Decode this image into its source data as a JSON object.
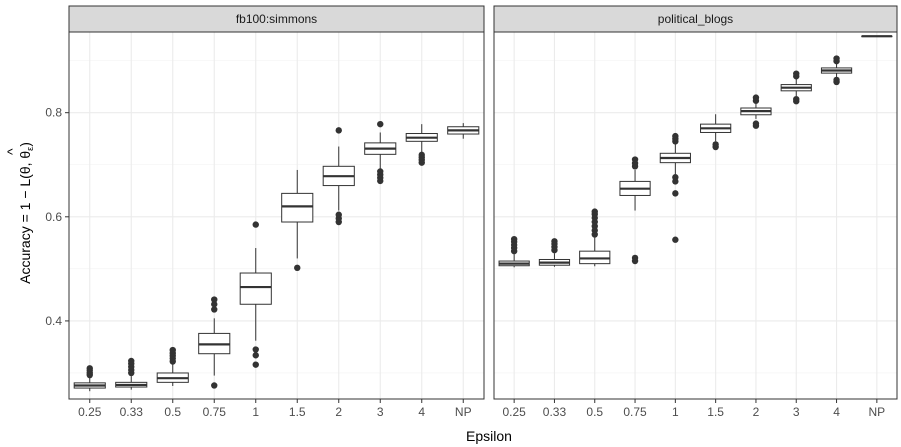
{
  "chart_data": {
    "type": "boxplot",
    "xlabel": "Epsilon",
    "ylabel": "Accuracy = 1 − L(θ, θ̂ε)",
    "categories": [
      "0.25",
      "0.33",
      "0.5",
      "0.75",
      "1",
      "1.5",
      "2",
      "3",
      "4",
      "NP"
    ],
    "ylim": [
      0.25,
      0.955
    ],
    "yticks": [
      0.4,
      0.6,
      0.8
    ],
    "ytick_labels": [
      "0.4",
      "0.6",
      "0.8"
    ],
    "grid": true,
    "panels": [
      {
        "title": "fb100:simmons",
        "boxes": [
          {
            "category": "0.25",
            "whisker_low": 0.265,
            "q1": 0.271,
            "median": 0.276,
            "q3": 0.281,
            "whisker_high": 0.292,
            "outliers": [
              0.296,
              0.3,
              0.305,
              0.309
            ]
          },
          {
            "category": "0.33",
            "whisker_low": 0.268,
            "q1": 0.273,
            "median": 0.277,
            "q3": 0.282,
            "whisker_high": 0.294,
            "outliers": [
              0.3,
              0.306,
              0.312,
              0.318,
              0.323
            ]
          },
          {
            "category": "0.5",
            "whisker_low": 0.275,
            "q1": 0.282,
            "median": 0.29,
            "q3": 0.3,
            "whisker_high": 0.318,
            "outliers": [
              0.322,
              0.328,
              0.333,
              0.338,
              0.344
            ]
          },
          {
            "category": "0.75",
            "whisker_low": 0.295,
            "q1": 0.337,
            "median": 0.355,
            "q3": 0.376,
            "whisker_high": 0.405,
            "outliers": [
              0.276,
              0.422,
              0.432,
              0.441
            ]
          },
          {
            "category": "1",
            "whisker_low": 0.362,
            "q1": 0.432,
            "median": 0.465,
            "q3": 0.492,
            "whisker_high": 0.54,
            "outliers": [
              0.316,
              0.334,
              0.345,
              0.585
            ]
          },
          {
            "category": "1.5",
            "whisker_low": 0.52,
            "q1": 0.59,
            "median": 0.62,
            "q3": 0.645,
            "whisker_high": 0.69,
            "outliers": [
              0.502
            ]
          },
          {
            "category": "2",
            "whisker_low": 0.612,
            "q1": 0.66,
            "median": 0.678,
            "q3": 0.697,
            "whisker_high": 0.735,
            "outliers": [
              0.59,
              0.597,
              0.604,
              0.766
            ]
          },
          {
            "category": "3",
            "whisker_low": 0.692,
            "q1": 0.72,
            "median": 0.731,
            "q3": 0.742,
            "whisker_high": 0.762,
            "outliers": [
              0.669,
              0.675,
              0.681,
              0.687,
              0.778
            ]
          },
          {
            "category": "4",
            "whisker_low": 0.722,
            "q1": 0.745,
            "median": 0.752,
            "q3": 0.76,
            "whisker_high": 0.778,
            "outliers": [
              0.704,
              0.709,
              0.714,
              0.719
            ]
          },
          {
            "category": "NP",
            "whisker_low": 0.75,
            "q1": 0.759,
            "median": 0.766,
            "q3": 0.773,
            "whisker_high": 0.78,
            "outliers": []
          }
        ]
      },
      {
        "title": "political_blogs",
        "boxes": [
          {
            "category": "0.25",
            "whisker_low": 0.503,
            "q1": 0.506,
            "median": 0.51,
            "q3": 0.515,
            "whisker_high": 0.528,
            "outliers": [
              0.534,
              0.54,
              0.546,
              0.552,
              0.557
            ]
          },
          {
            "category": "0.33",
            "whisker_low": 0.504,
            "q1": 0.507,
            "median": 0.512,
            "q3": 0.518,
            "whisker_high": 0.53,
            "outliers": [
              0.536,
              0.542,
              0.548,
              0.553
            ]
          },
          {
            "category": "0.5",
            "whisker_low": 0.505,
            "q1": 0.51,
            "median": 0.52,
            "q3": 0.534,
            "whisker_high": 0.56,
            "outliers": [
              0.566,
              0.574,
              0.582,
              0.59,
              0.598,
              0.605,
              0.61
            ]
          },
          {
            "category": "0.75",
            "whisker_low": 0.612,
            "q1": 0.641,
            "median": 0.654,
            "q3": 0.668,
            "whisker_high": 0.69,
            "outliers": [
              0.515,
              0.521,
              0.697,
              0.703,
              0.71
            ]
          },
          {
            "category": "1",
            "whisker_low": 0.682,
            "q1": 0.704,
            "median": 0.713,
            "q3": 0.722,
            "whisker_high": 0.74,
            "outliers": [
              0.556,
              0.645,
              0.668,
              0.676,
              0.745,
              0.75,
              0.755
            ]
          },
          {
            "category": "1.5",
            "whisker_low": 0.745,
            "q1": 0.762,
            "median": 0.77,
            "q3": 0.778,
            "whisker_high": 0.797,
            "outliers": [
              0.734,
              0.739
            ]
          },
          {
            "category": "2",
            "whisker_low": 0.788,
            "q1": 0.796,
            "median": 0.803,
            "q3": 0.809,
            "whisker_high": 0.82,
            "outliers": [
              0.775,
              0.779,
              0.823,
              0.829
            ]
          },
          {
            "category": "3",
            "whisker_low": 0.832,
            "q1": 0.842,
            "median": 0.848,
            "q3": 0.854,
            "whisker_high": 0.866,
            "outliers": [
              0.822,
              0.826,
              0.87,
              0.875
            ]
          },
          {
            "category": "4",
            "whisker_low": 0.868,
            "q1": 0.876,
            "median": 0.881,
            "q3": 0.886,
            "whisker_high": 0.894,
            "outliers": [
              0.859,
              0.863,
              0.899,
              0.904
            ]
          },
          {
            "category": "NP",
            "whisker_low": 0.947,
            "q1": 0.947,
            "median": 0.947,
            "q3": 0.947,
            "whisker_high": 0.947,
            "outliers": []
          }
        ]
      }
    ]
  }
}
